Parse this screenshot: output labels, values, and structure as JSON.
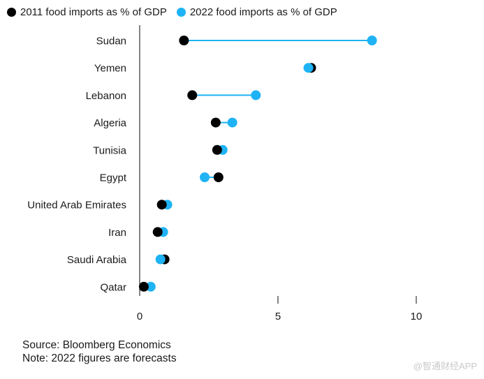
{
  "chart_data": {
    "type": "dumbbell",
    "title": "",
    "xlabel": "",
    "ylabel": "",
    "xlim": [
      0,
      10
    ],
    "xticks": [
      0,
      5,
      10
    ],
    "categories": [
      "Sudan",
      "Yemen",
      "Lebanon",
      "Algeria",
      "Tunisia",
      "Egypt",
      "United Arab Emirates",
      "Iran",
      "Saudi Arabia",
      "Qatar"
    ],
    "series": [
      {
        "name": "2011 food imports as % of GDP",
        "color": "#000000",
        "values": [
          1.6,
          6.2,
          1.9,
          2.75,
          2.8,
          2.85,
          0.8,
          0.65,
          0.9,
          0.15
        ]
      },
      {
        "name": "2022 food imports as % of GDP",
        "color": "#1fb3f5",
        "values": [
          8.4,
          6.1,
          4.2,
          3.35,
          3.0,
          2.35,
          1.0,
          0.85,
          0.75,
          0.4
        ]
      }
    ],
    "connector_color": "#1fb3f5"
  },
  "legend": {
    "item_2011": "2011 food imports as % of GDP",
    "item_2022": "2022 food imports as % of GDP",
    "color_2011": "#000000",
    "color_2022": "#1fb3f5"
  },
  "footer": {
    "source": "Source: Bloomberg Economics",
    "note": "Note: 2022 figures are forecasts"
  },
  "watermark": "@智通财经APP"
}
